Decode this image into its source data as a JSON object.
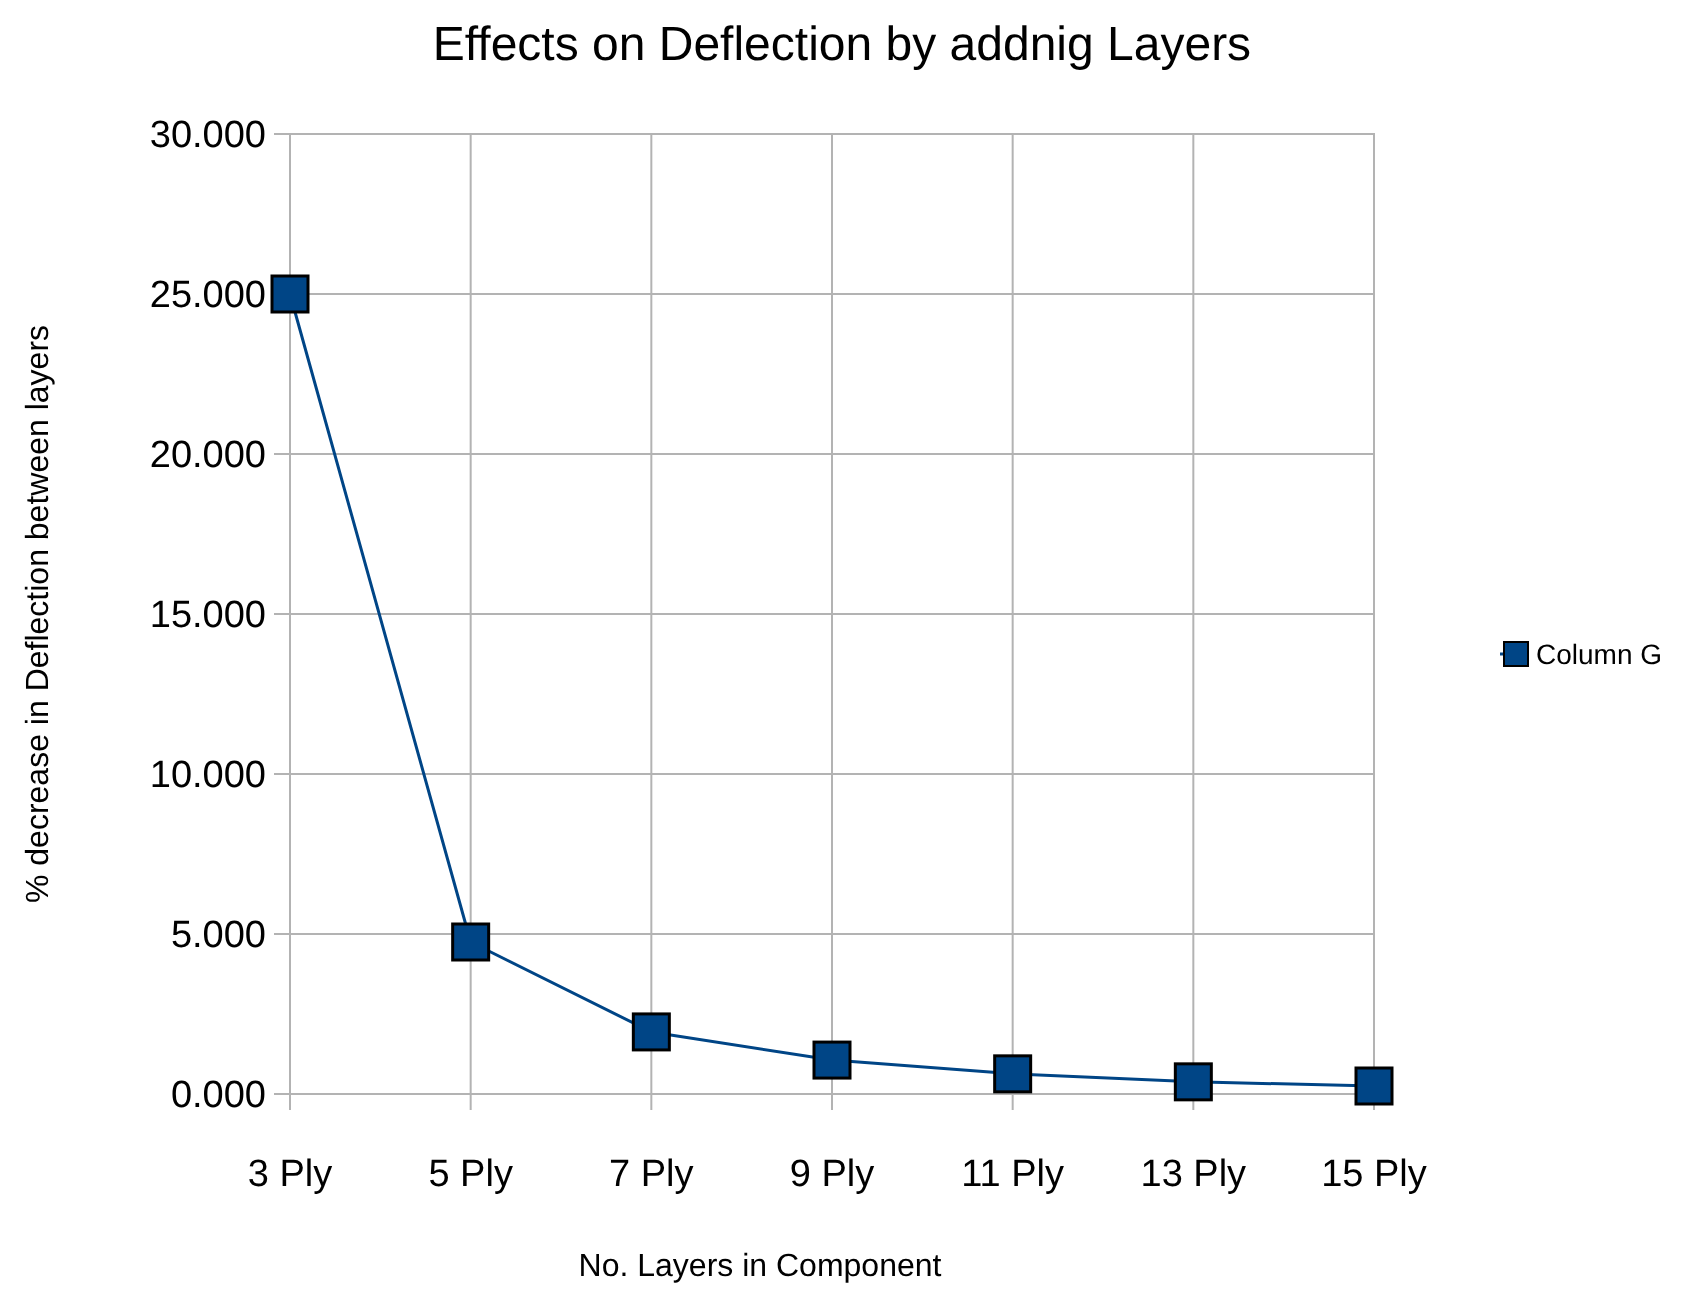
{
  "chart_data": {
    "type": "line",
    "title": "Effects on Deflection by addnig Layers",
    "xlabel": "No. Layers in Component",
    "ylabel": "% decrease in Deflection between layers",
    "categories": [
      "3 Ply",
      "5 Ply",
      "7 Ply",
      "9 Ply",
      "11 Ply",
      "13 Ply",
      "15 Ply"
    ],
    "series": [
      {
        "name": "Column G",
        "color": "#004586",
        "values": [
          25,
          4.75,
          1.94,
          1.06,
          0.63,
          0.38,
          0.25
        ]
      }
    ],
    "ylim": [
      0,
      30
    ],
    "yticks": [
      {
        "value": 0,
        "label": "0.000"
      },
      {
        "value": 5,
        "label": "5.000"
      },
      {
        "value": 10,
        "label": "10.000"
      },
      {
        "value": 15,
        "label": "15.000"
      },
      {
        "value": 20,
        "label": "20.000"
      },
      {
        "value": 25,
        "label": "25.000"
      },
      {
        "value": 30,
        "label": "30.000"
      }
    ],
    "grid": true,
    "legend": "right",
    "marker": "square",
    "line_style": "solid"
  }
}
